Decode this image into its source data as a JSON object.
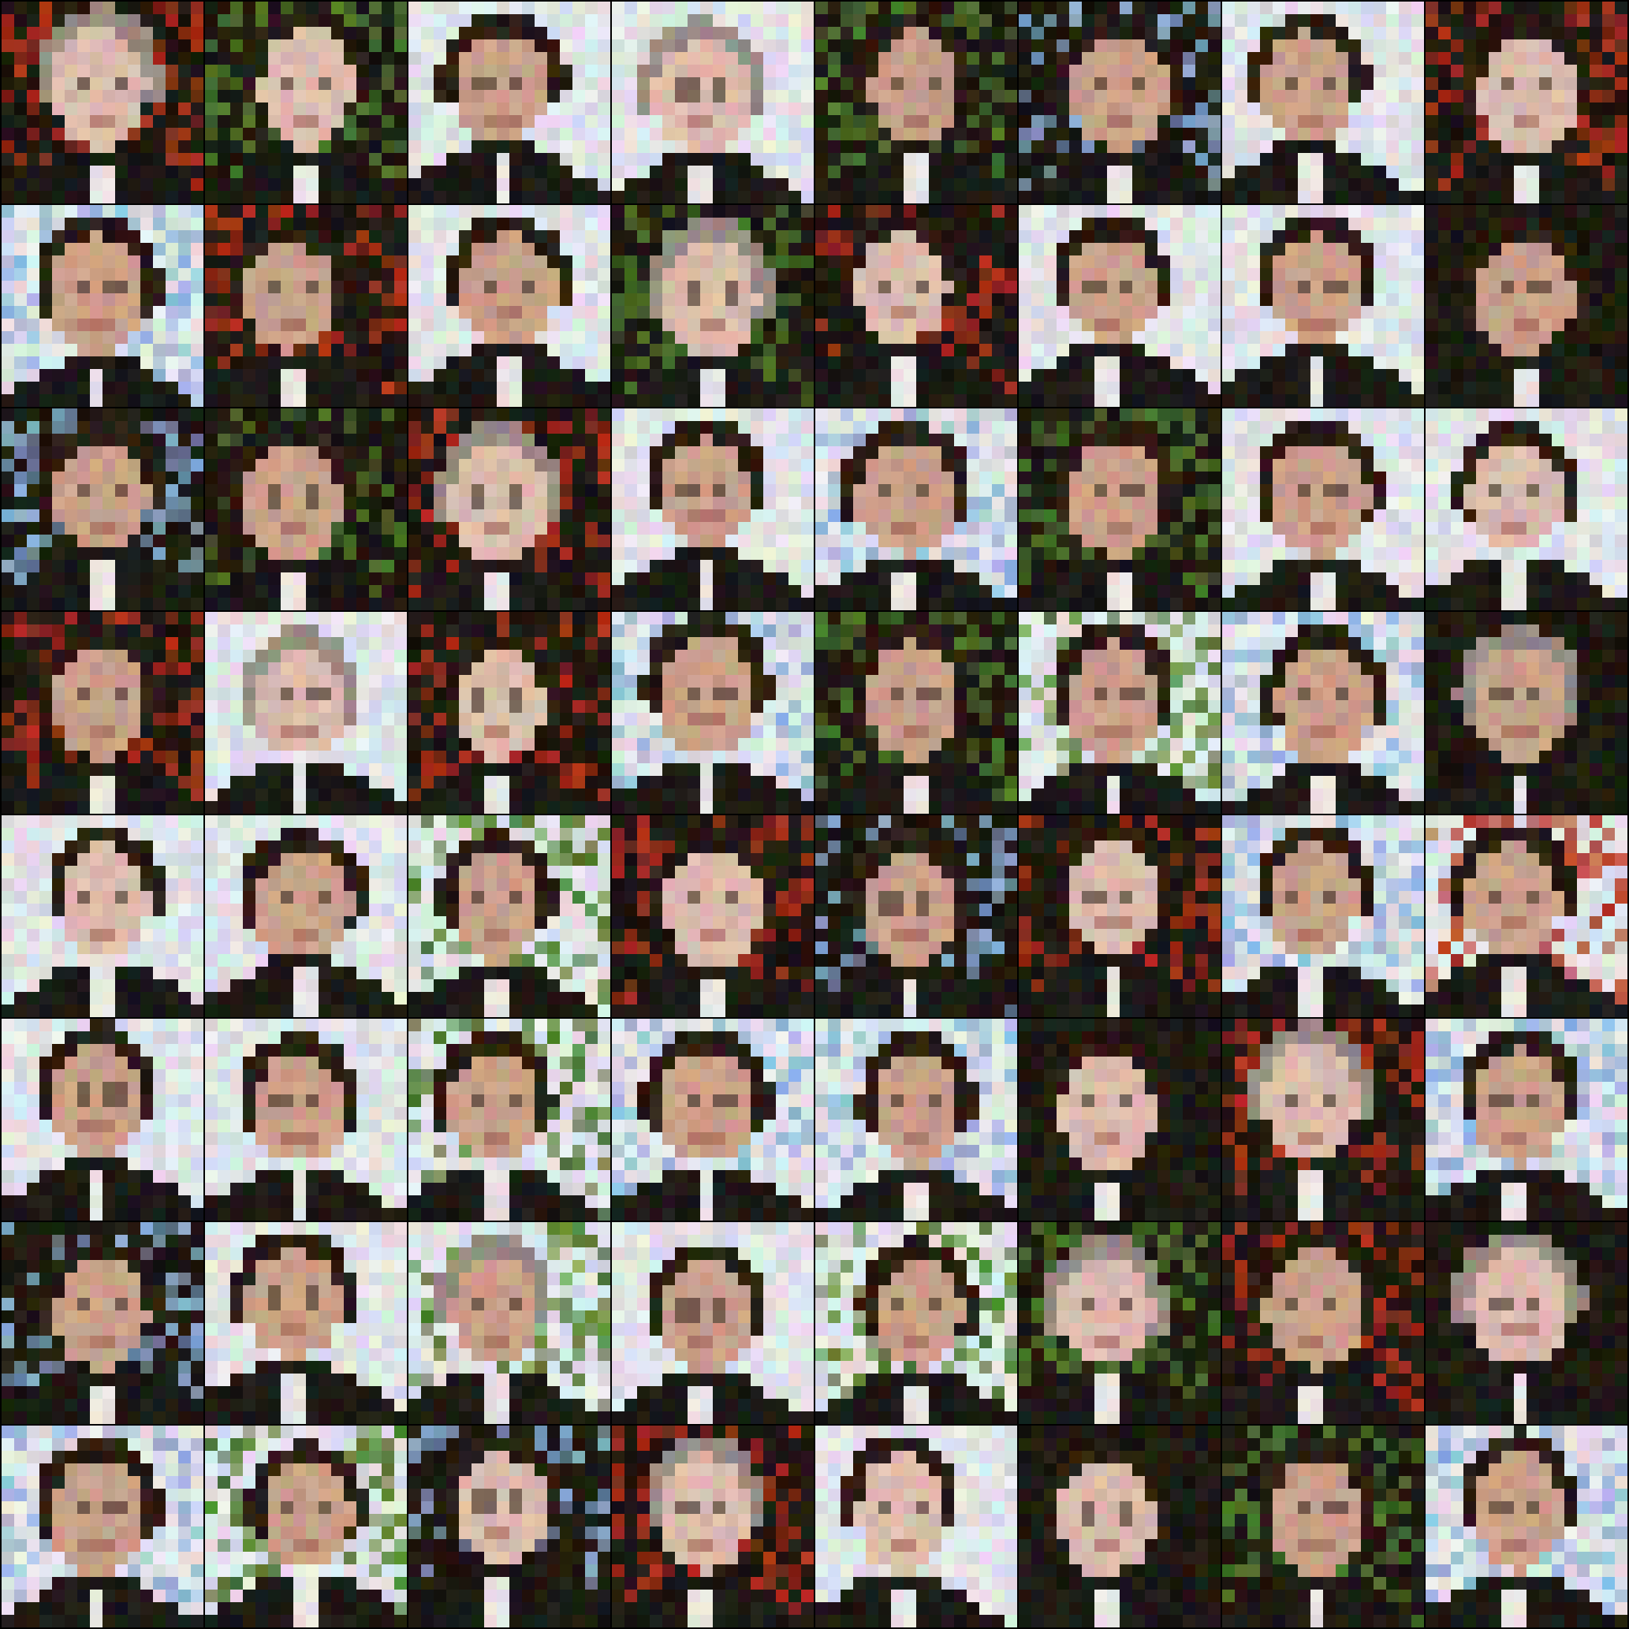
{
  "image": {
    "kind": "sample-grid",
    "grid_rows": 8,
    "grid_cols": 8,
    "tile_pixel_resolution": 16,
    "description_note": "",
    "palette": {
      "border": "#000000",
      "dark_bg": "#1e1a12",
      "light_bg": "#dfe3e6",
      "skin": "#c9a08a",
      "hair": "#2a1d14",
      "suit": "#1c1a16",
      "shirt": "#e8e4e2",
      "red_bg": "#b3301c",
      "green_bg": "#4f7a2e",
      "blue_bg": "#8fb3d9"
    },
    "tiles": [
      {
        "bg": "dark",
        "accent": "red",
        "face": "light",
        "hair": "light"
      },
      {
        "bg": "dark",
        "accent": "green",
        "face": "light",
        "hair": "dark"
      },
      {
        "bg": "light",
        "accent": "none",
        "face": "mid",
        "hair": "dark"
      },
      {
        "bg": "light",
        "accent": "none",
        "face": "light",
        "hair": "light"
      },
      {
        "bg": "dark",
        "accent": "green",
        "face": "mid",
        "hair": "dark"
      },
      {
        "bg": "dark",
        "accent": "blue",
        "face": "mid",
        "hair": "dark"
      },
      {
        "bg": "light",
        "accent": "none",
        "face": "mid",
        "hair": "dark"
      },
      {
        "bg": "dark",
        "accent": "red",
        "face": "light",
        "hair": "dark"
      },
      {
        "bg": "light",
        "accent": "blue",
        "face": "mid",
        "hair": "dark"
      },
      {
        "bg": "dark",
        "accent": "red",
        "face": "mid",
        "hair": "dark"
      },
      {
        "bg": "light",
        "accent": "none",
        "face": "mid",
        "hair": "dark"
      },
      {
        "bg": "dark",
        "accent": "green",
        "face": "light",
        "hair": "light"
      },
      {
        "bg": "dark",
        "accent": "red",
        "face": "light",
        "hair": "dark"
      },
      {
        "bg": "light",
        "accent": "none",
        "face": "mid",
        "hair": "dark"
      },
      {
        "bg": "light",
        "accent": "none",
        "face": "mid",
        "hair": "dark"
      },
      {
        "bg": "dark",
        "accent": "none",
        "face": "mid",
        "hair": "dark"
      },
      {
        "bg": "dark",
        "accent": "blue",
        "face": "mid",
        "hair": "dark"
      },
      {
        "bg": "dark",
        "accent": "green",
        "face": "mid",
        "hair": "dark"
      },
      {
        "bg": "dark",
        "accent": "red",
        "face": "light",
        "hair": "light"
      },
      {
        "bg": "light",
        "accent": "none",
        "face": "mid",
        "hair": "dark"
      },
      {
        "bg": "light",
        "accent": "blue",
        "face": "mid",
        "hair": "dark"
      },
      {
        "bg": "dark",
        "accent": "green",
        "face": "mid",
        "hair": "dark"
      },
      {
        "bg": "light",
        "accent": "none",
        "face": "mid",
        "hair": "dark"
      },
      {
        "bg": "light",
        "accent": "none",
        "face": "light",
        "hair": "dark"
      },
      {
        "bg": "dark",
        "accent": "red",
        "face": "mid",
        "hair": "dark"
      },
      {
        "bg": "light",
        "accent": "none",
        "face": "light",
        "hair": "light"
      },
      {
        "bg": "dark",
        "accent": "red",
        "face": "light",
        "hair": "dark"
      },
      {
        "bg": "light",
        "accent": "blue",
        "face": "mid",
        "hair": "dark"
      },
      {
        "bg": "dark",
        "accent": "green",
        "face": "mid",
        "hair": "dark"
      },
      {
        "bg": "light",
        "accent": "green",
        "face": "mid",
        "hair": "dark"
      },
      {
        "bg": "light",
        "accent": "blue",
        "face": "mid",
        "hair": "dark"
      },
      {
        "bg": "dark",
        "accent": "none",
        "face": "mid",
        "hair": "light"
      },
      {
        "bg": "light",
        "accent": "none",
        "face": "light",
        "hair": "dark"
      },
      {
        "bg": "light",
        "accent": "none",
        "face": "mid",
        "hair": "dark"
      },
      {
        "bg": "light",
        "accent": "green",
        "face": "mid",
        "hair": "dark"
      },
      {
        "bg": "dark",
        "accent": "red",
        "face": "light",
        "hair": "dark"
      },
      {
        "bg": "dark",
        "accent": "blue",
        "face": "mid",
        "hair": "dark"
      },
      {
        "bg": "dark",
        "accent": "red",
        "face": "light",
        "hair": "dark"
      },
      {
        "bg": "light",
        "accent": "blue",
        "face": "mid",
        "hair": "dark"
      },
      {
        "bg": "light",
        "accent": "red",
        "face": "mid",
        "hair": "dark"
      },
      {
        "bg": "light",
        "accent": "none",
        "face": "mid",
        "hair": "dark"
      },
      {
        "bg": "light",
        "accent": "none",
        "face": "mid",
        "hair": "dark"
      },
      {
        "bg": "light",
        "accent": "green",
        "face": "mid",
        "hair": "dark"
      },
      {
        "bg": "light",
        "accent": "blue",
        "face": "mid",
        "hair": "dark"
      },
      {
        "bg": "light",
        "accent": "blue",
        "face": "mid",
        "hair": "dark"
      },
      {
        "bg": "dark",
        "accent": "none",
        "face": "light",
        "hair": "dark"
      },
      {
        "bg": "dark",
        "accent": "red",
        "face": "light",
        "hair": "light"
      },
      {
        "bg": "light",
        "accent": "blue",
        "face": "mid",
        "hair": "dark"
      },
      {
        "bg": "dark",
        "accent": "blue",
        "face": "mid",
        "hair": "dark"
      },
      {
        "bg": "light",
        "accent": "none",
        "face": "mid",
        "hair": "dark"
      },
      {
        "bg": "light",
        "accent": "green",
        "face": "mid",
        "hair": "light"
      },
      {
        "bg": "light",
        "accent": "none",
        "face": "mid",
        "hair": "dark"
      },
      {
        "bg": "light",
        "accent": "green",
        "face": "mid",
        "hair": "dark"
      },
      {
        "bg": "dark",
        "accent": "green",
        "face": "light",
        "hair": "light"
      },
      {
        "bg": "dark",
        "accent": "red",
        "face": "mid",
        "hair": "dark"
      },
      {
        "bg": "dark",
        "accent": "none",
        "face": "light",
        "hair": "light"
      },
      {
        "bg": "light",
        "accent": "blue",
        "face": "mid",
        "hair": "dark"
      },
      {
        "bg": "light",
        "accent": "green",
        "face": "mid",
        "hair": "dark"
      },
      {
        "bg": "dark",
        "accent": "blue",
        "face": "light",
        "hair": "dark"
      },
      {
        "bg": "dark",
        "accent": "red",
        "face": "light",
        "hair": "light"
      },
      {
        "bg": "light",
        "accent": "none",
        "face": "light",
        "hair": "dark"
      },
      {
        "bg": "dark",
        "accent": "none",
        "face": "light",
        "hair": "dark"
      },
      {
        "bg": "dark",
        "accent": "green",
        "face": "mid",
        "hair": "dark"
      },
      {
        "bg": "light",
        "accent": "blue",
        "face": "mid",
        "hair": "dark"
      }
    ]
  }
}
